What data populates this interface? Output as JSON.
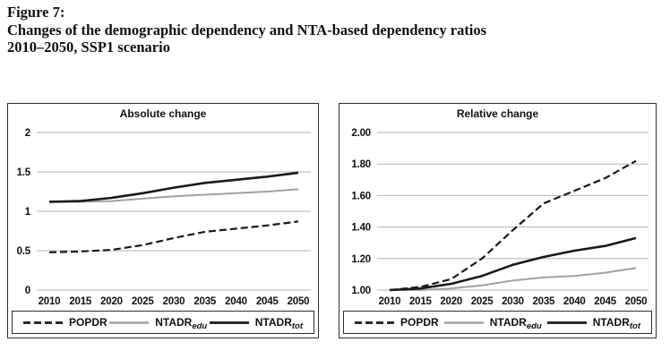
{
  "header": {
    "figure_label": "Figure 7:",
    "title_line1": "Changes of the demographic dependency and NTA-based dependency ratios",
    "title_line2": "2010–2050, SSP1 scenario"
  },
  "colors": {
    "series_dark": "#1a1a1a",
    "series_gray": "#a2a2a2",
    "gridline": "#b3b3b3",
    "panel_border": "#2e2e2e",
    "text": "#111111"
  },
  "legend": {
    "items": [
      {
        "label": "POPDR",
        "sub": "",
        "color": "#1a1a1a",
        "dash": true
      },
      {
        "label": "NTADR",
        "sub": "edu",
        "color": "#a2a2a2",
        "dash": false
      },
      {
        "label": "NTADR",
        "sub": "tot",
        "color": "#1a1a1a",
        "dash": false
      }
    ]
  },
  "chart_data": [
    {
      "type": "line",
      "title": "Absolute change",
      "x": [
        "2010",
        "2015",
        "2020",
        "2025",
        "2030",
        "2035",
        "2040",
        "2045",
        "2050"
      ],
      "xlabel": "",
      "ylabel": "",
      "ylim": [
        0,
        2
      ],
      "grid": true,
      "legend_position": "bottom",
      "yticks": [
        {
          "v": 2,
          "label": "2"
        },
        {
          "v": 1.5,
          "label": "1.5"
        },
        {
          "v": 1,
          "label": "1"
        },
        {
          "v": 0.5,
          "label": "0.5"
        },
        {
          "v": 0,
          "label": "0"
        }
      ],
      "series": [
        {
          "name": "POPDR",
          "color": "#1a1a1a",
          "dash": true,
          "width": 2.2,
          "values": [
            0.48,
            0.49,
            0.51,
            0.57,
            0.66,
            0.74,
            0.78,
            0.82,
            0.87
          ]
        },
        {
          "name": "NTADR_edu",
          "color": "#a2a2a2",
          "dash": false,
          "width": 2.0,
          "values": [
            1.12,
            1.12,
            1.13,
            1.16,
            1.19,
            1.21,
            1.23,
            1.25,
            1.28
          ]
        },
        {
          "name": "NTADR_tot",
          "color": "#1a1a1a",
          "dash": false,
          "width": 2.6,
          "values": [
            1.12,
            1.13,
            1.17,
            1.23,
            1.3,
            1.36,
            1.4,
            1.44,
            1.49
          ]
        }
      ]
    },
    {
      "type": "line",
      "title": "Relative change",
      "x": [
        "2010",
        "2015",
        "2020",
        "2025",
        "2030",
        "2035",
        "2040",
        "2045",
        "2050"
      ],
      "xlabel": "",
      "ylabel": "",
      "ylim": [
        1.0,
        2.0
      ],
      "grid": true,
      "legend_position": "bottom",
      "yticks": [
        {
          "v": 2.0,
          "label": "2.00"
        },
        {
          "v": 1.8,
          "label": "1.80"
        },
        {
          "v": 1.6,
          "label": "1.60"
        },
        {
          "v": 1.4,
          "label": "1.40"
        },
        {
          "v": 1.2,
          "label": "1.20"
        },
        {
          "v": 1.0,
          "label": "1.00"
        }
      ],
      "series": [
        {
          "name": "POPDR",
          "color": "#1a1a1a",
          "dash": true,
          "width": 2.2,
          "values": [
            1.0,
            1.02,
            1.07,
            1.2,
            1.38,
            1.55,
            1.63,
            1.71,
            1.82
          ]
        },
        {
          "name": "NTADR_edu",
          "color": "#a2a2a2",
          "dash": false,
          "width": 2.0,
          "values": [
            1.0,
            1.0,
            1.01,
            1.03,
            1.06,
            1.08,
            1.09,
            1.11,
            1.14
          ]
        },
        {
          "name": "NTADR_tot",
          "color": "#1a1a1a",
          "dash": false,
          "width": 2.6,
          "values": [
            1.0,
            1.01,
            1.04,
            1.09,
            1.16,
            1.21,
            1.25,
            1.28,
            1.33
          ]
        }
      ]
    }
  ]
}
